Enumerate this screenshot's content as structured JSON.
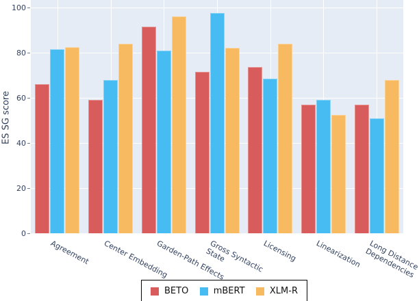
{
  "chart_data": {
    "type": "bar",
    "title": "",
    "xlabel": "",
    "ylabel": "ES SG score",
    "ylim": [
      0,
      100
    ],
    "yticks": [
      0,
      20,
      40,
      60,
      80,
      100
    ],
    "grid": true,
    "legend_position": "bottom-center",
    "plot_bg_color": "#e6ecf5",
    "grid_color": "#ffffff",
    "text_color": "#31415f",
    "legend_border_color": "#000000",
    "categories": [
      "Agreement",
      "Center Embedding",
      "Garden-Path Effects",
      "Gross Syntactic State",
      "Licensing",
      "Linearization",
      "Long Distance Dependencies"
    ],
    "category_display": [
      [
        "Agreement"
      ],
      [
        "Center Embedding"
      ],
      [
        "Garden-Path Effects"
      ],
      [
        "Gross Syntactic",
        "State"
      ],
      [
        "Licensing"
      ],
      [
        "Linearization"
      ],
      [
        "Long Distance",
        "Dependencies"
      ]
    ],
    "series": [
      {
        "name": "BETO",
        "color": "#d95c5c",
        "values": [
          66,
          59,
          91.5,
          71.5,
          73.5,
          57,
          57
        ]
      },
      {
        "name": "mBERT",
        "color": "#47bcf2",
        "values": [
          81.5,
          68,
          81,
          97.5,
          68.5,
          59,
          51
        ]
      },
      {
        "name": "XLM-R",
        "color": "#f7ba61",
        "values": [
          82.5,
          84,
          96,
          82,
          84,
          52.5,
          68
        ]
      }
    ]
  }
}
